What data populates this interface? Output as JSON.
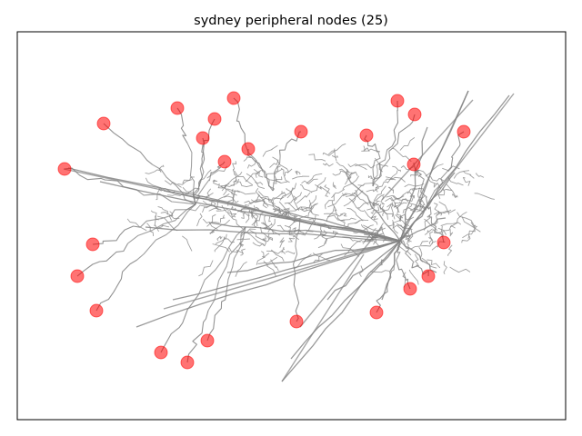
{
  "chart_data": {
    "type": "scatter",
    "title": "sydney peripheral nodes (25)",
    "xlabel": "",
    "ylabel": "",
    "grid": false,
    "axes_ticks": false,
    "network_edge_color": "#808080",
    "node_color": "#ff0000",
    "node_alpha": 0.55,
    "series": [
      {
        "name": "",
        "points": [
          {
            "x": 71,
            "y": 186
          },
          {
            "x": 114,
            "y": 136
          },
          {
            "x": 195,
            "y": 119
          },
          {
            "x": 257,
            "y": 108
          },
          {
            "x": 236,
            "y": 131
          },
          {
            "x": 223,
            "y": 152
          },
          {
            "x": 247,
            "y": 178
          },
          {
            "x": 273,
            "y": 164
          },
          {
            "x": 331,
            "y": 145
          },
          {
            "x": 403,
            "y": 149
          },
          {
            "x": 437,
            "y": 111
          },
          {
            "x": 456,
            "y": 126
          },
          {
            "x": 510,
            "y": 145
          },
          {
            "x": 455,
            "y": 181
          },
          {
            "x": 488,
            "y": 267
          },
          {
            "x": 471,
            "y": 304
          },
          {
            "x": 451,
            "y": 318
          },
          {
            "x": 414,
            "y": 344
          },
          {
            "x": 326,
            "y": 354
          },
          {
            "x": 102,
            "y": 269
          },
          {
            "x": 85,
            "y": 304
          },
          {
            "x": 106,
            "y": 342
          },
          {
            "x": 228,
            "y": 375
          },
          {
            "x": 177,
            "y": 388
          },
          {
            "x": 206,
            "y": 399
          }
        ]
      }
    ]
  }
}
